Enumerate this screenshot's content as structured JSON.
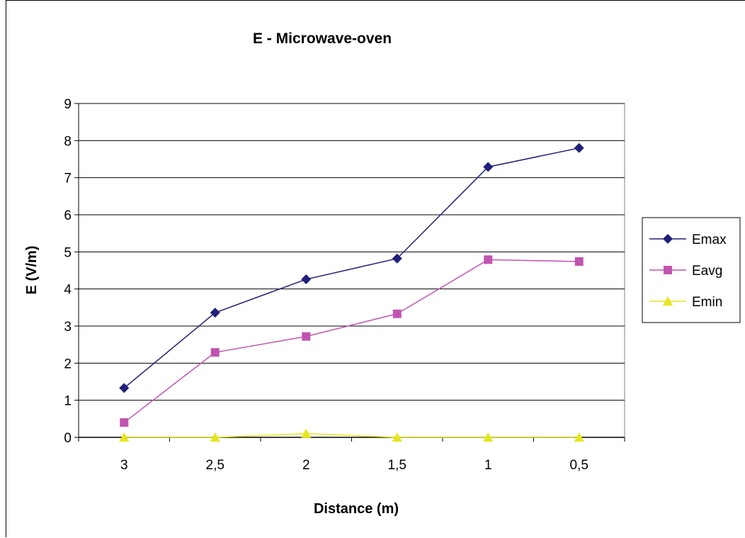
{
  "chart_data": {
    "type": "line",
    "title": "E - Microwave-oven",
    "xlabel": "Distance (m)",
    "ylabel": "E (V/m)",
    "categories": [
      "3",
      "2,5",
      "2",
      "1,5",
      "1",
      "0,5"
    ],
    "ylim": [
      0,
      9
    ],
    "yticks": [
      "0",
      "1",
      "2",
      "3",
      "4",
      "5",
      "6",
      "7",
      "8",
      "9"
    ],
    "grid": true,
    "legend_position": "right",
    "series": [
      {
        "name": "Emax",
        "color": "#1f1f7a",
        "marker": "diamond",
        "values": [
          1.33,
          3.36,
          4.26,
          4.82,
          7.29,
          7.8
        ]
      },
      {
        "name": "Eavg",
        "color": "#c154b1",
        "marker": "square",
        "values": [
          0.4,
          2.29,
          2.72,
          3.33,
          4.79,
          4.74
        ]
      },
      {
        "name": "Emin",
        "color": "#e6e61e",
        "marker": "triangle",
        "values": [
          0.0,
          0.0,
          0.1,
          0.0,
          0.0,
          0.0
        ]
      }
    ]
  }
}
